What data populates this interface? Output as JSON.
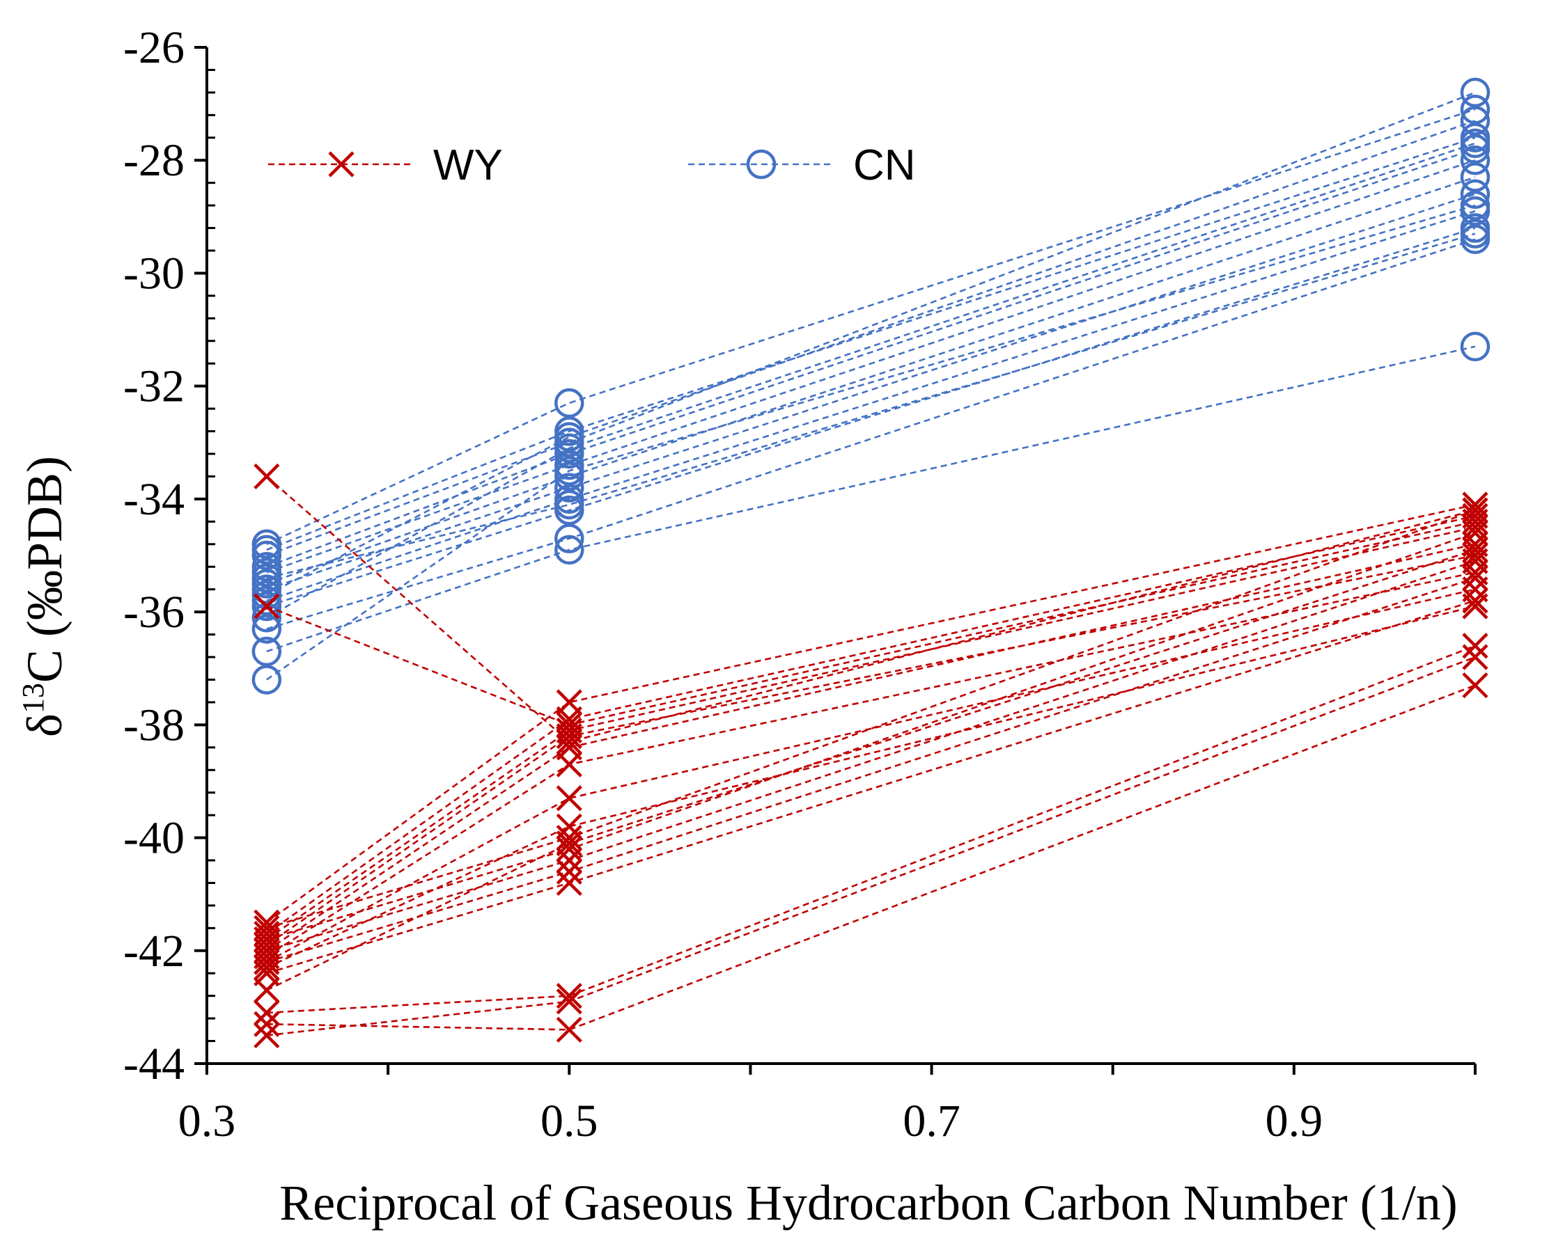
{
  "chart_data": {
    "type": "line",
    "title": "",
    "xlabel": "Reciprocal of Gaseous Hydrocarbon Carbon Number (1/n)",
    "ylabel_prefix": "δ",
    "ylabel_sup": "13",
    "ylabel_suffix": "C (‰PDB)",
    "xlim": [
      0.3,
      1.0
    ],
    "ylim": [
      -44,
      -26
    ],
    "x_tick_values": [
      0.3,
      0.5,
      0.7,
      0.9
    ],
    "x_tick_labels": [
      "0.3",
      "0.5",
      "0.7",
      "0.9"
    ],
    "x_minor_ticks": [
      0.4,
      0.6,
      0.8,
      1.0
    ],
    "y_tick_values": [
      -26,
      -28,
      -30,
      -32,
      -34,
      -36,
      -38,
      -40,
      -42,
      -44
    ],
    "y_tick_labels": [
      "-26",
      "-28",
      "-30",
      "-32",
      "-34",
      "-36",
      "-38",
      "-40",
      "-42",
      "-44"
    ],
    "grid": false,
    "legend_position": "top-left",
    "x": [
      0.333,
      0.5,
      1.0
    ],
    "groups": [
      {
        "name": "WY",
        "color": "#c00000",
        "marker": "x",
        "line_style": "dashed",
        "series": [
          [
            -33.6,
            -38.3,
            -34.2
          ],
          [
            -35.9,
            -38.0,
            -34.4
          ],
          [
            -41.5,
            -37.6,
            -34.1
          ],
          [
            -41.7,
            -37.9,
            -34.3
          ],
          [
            -41.8,
            -38.1,
            -34.5
          ],
          [
            -41.9,
            -38.2,
            -35.0
          ],
          [
            -42.0,
            -38.4,
            -34.8
          ],
          [
            -42.1,
            -38.7,
            -35.3
          ],
          [
            -42.2,
            -39.3,
            -35.6
          ],
          [
            -42.3,
            -39.8,
            -35.9
          ],
          [
            -41.6,
            -40.0,
            -34.2
          ],
          [
            -41.8,
            -40.2,
            -34.6
          ],
          [
            -42.0,
            -40.4,
            -35.1
          ],
          [
            -42.2,
            -40.6,
            -35.4
          ],
          [
            -42.4,
            -40.8,
            -35.8
          ],
          [
            -42.7,
            -40.1,
            -34.9
          ],
          [
            -43.1,
            -42.8,
            -36.6
          ],
          [
            -43.3,
            -43.4,
            -37.3
          ],
          [
            -43.5,
            -42.9,
            -36.8
          ]
        ]
      },
      {
        "name": "CN",
        "color": "#4472c4",
        "marker": "o",
        "line_style": "dashed",
        "series": [
          [
            -34.8,
            -32.3,
            -27.1
          ],
          [
            -34.9,
            -32.8,
            -27.6
          ],
          [
            -35.0,
            -33.0,
            -26.8
          ],
          [
            -35.2,
            -33.2,
            -27.8
          ],
          [
            -35.3,
            -33.4,
            -28.0
          ],
          [
            -35.5,
            -33.6,
            -28.3
          ],
          [
            -35.6,
            -33.8,
            -28.6
          ],
          [
            -35.8,
            -34.0,
            -28.9
          ],
          [
            -35.9,
            -34.2,
            -29.2
          ],
          [
            -36.1,
            -33.1,
            -27.7
          ],
          [
            -36.3,
            -34.7,
            -29.4
          ],
          [
            -36.7,
            -34.9,
            -31.3
          ],
          [
            -37.2,
            -33.5,
            -28.8
          ],
          [
            -35.4,
            -34.1,
            -29.3
          ],
          [
            -35.7,
            -32.9,
            -27.3
          ]
        ]
      }
    ]
  }
}
